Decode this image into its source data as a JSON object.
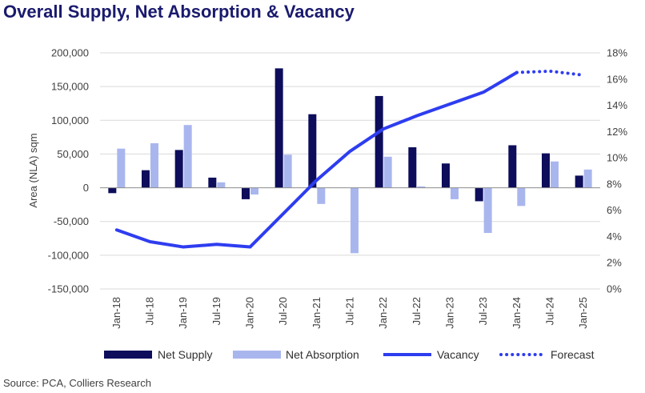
{
  "title": "Overall Supply, Net Absorption & Vacancy",
  "source": "Source:  PCA, Colliers Research",
  "colors": {
    "net_supply": "#0d0d5c",
    "net_absorption": "#a9b6ee",
    "vacancy": "#2e3df0",
    "title": "#1a1a6e"
  },
  "chart_data": {
    "type": "bar",
    "categories": [
      "Jan-18",
      "Jul-18",
      "Jan-19",
      "Jul-19",
      "Jan-20",
      "Jul-20",
      "Jan-21",
      "Jul-21",
      "Jan-22",
      "Jul-22",
      "Jan-23",
      "Jul-23",
      "Jan-24",
      "Jul-24",
      "Jan-25"
    ],
    "series": [
      {
        "name": "Net Supply",
        "type": "bar",
        "axis": "left",
        "values": [
          -8000,
          26000,
          56000,
          15000,
          -17000,
          177000,
          109000,
          0,
          136000,
          60000,
          36000,
          -20000,
          63000,
          51000,
          18000
        ]
      },
      {
        "name": "Net Absorption",
        "type": "bar",
        "axis": "left",
        "values": [
          58000,
          66000,
          93000,
          8000,
          -10000,
          49000,
          -24000,
          -97000,
          46000,
          2000,
          -17000,
          -67000,
          -27000,
          39000,
          27000
        ]
      },
      {
        "name": "Vacancy",
        "type": "line",
        "axis": "right",
        "values": [
          4.5,
          3.6,
          3.2,
          3.4,
          3.2,
          null,
          8.3,
          10.5,
          12.2,
          13.2,
          14.1,
          15.0,
          16.5,
          null,
          null
        ]
      },
      {
        "name": "Forecast",
        "type": "line-dotted",
        "axis": "right",
        "values": [
          null,
          null,
          null,
          null,
          null,
          null,
          null,
          null,
          null,
          null,
          null,
          null,
          16.5,
          16.6,
          16.3
        ]
      }
    ],
    "ylabel": "Area (NLA) sqm",
    "ylim": [
      -150000,
      200000
    ],
    "yticks": [
      -150000,
      -100000,
      -50000,
      0,
      50000,
      100000,
      150000,
      200000
    ],
    "ytick_labels": [
      "-150,000",
      "-100,000",
      "-50,000",
      "0",
      "50,000",
      "100,000",
      "150,000",
      "200,000"
    ],
    "y2lim": [
      0,
      18
    ],
    "y2ticks": [
      0,
      2,
      4,
      6,
      8,
      10,
      12,
      14,
      16,
      18
    ],
    "y2tick_labels": [
      "0%",
      "2%",
      "4%",
      "6%",
      "8%",
      "10%",
      "12%",
      "14%",
      "16%",
      "18%"
    ],
    "grid": true,
    "legend_position": "bottom"
  }
}
